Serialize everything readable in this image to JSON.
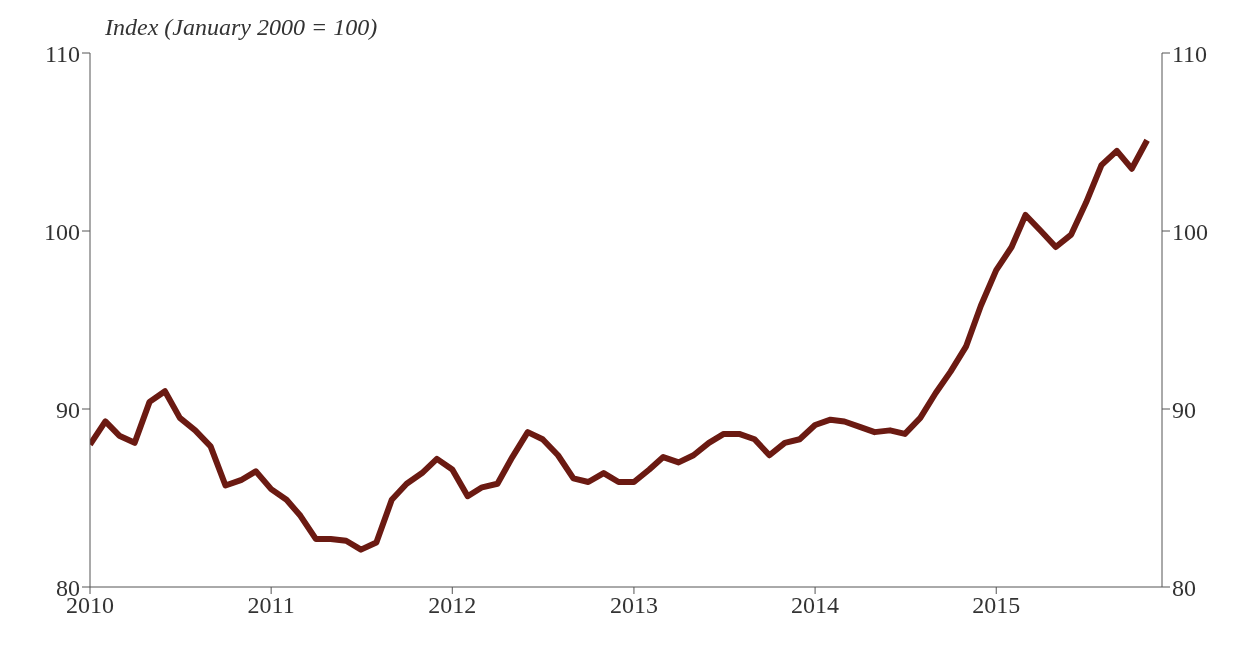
{
  "chart_data": {
    "type": "line",
    "ylabel": "Index (January 2000 = 100)",
    "x": [
      "2010-01",
      "2010-02",
      "2010-03",
      "2010-04",
      "2010-05",
      "2010-06",
      "2010-07",
      "2010-08",
      "2010-09",
      "2010-10",
      "2010-11",
      "2010-12",
      "2011-01",
      "2011-02",
      "2011-03",
      "2011-04",
      "2011-05",
      "2011-06",
      "2011-07",
      "2011-08",
      "2011-09",
      "2011-10",
      "2011-11",
      "2011-12",
      "2012-01",
      "2012-02",
      "2012-03",
      "2012-04",
      "2012-05",
      "2012-06",
      "2012-07",
      "2012-08",
      "2012-09",
      "2012-10",
      "2012-11",
      "2012-12",
      "2013-01",
      "2013-02",
      "2013-03",
      "2013-04",
      "2013-05",
      "2013-06",
      "2013-07",
      "2013-08",
      "2013-09",
      "2013-10",
      "2013-11",
      "2013-12",
      "2014-01",
      "2014-02",
      "2014-03",
      "2014-04",
      "2014-05",
      "2014-06",
      "2014-07",
      "2014-08",
      "2014-09",
      "2014-10",
      "2014-11",
      "2014-12",
      "2015-01",
      "2015-02",
      "2015-03",
      "2015-04",
      "2015-05",
      "2015-06",
      "2015-07",
      "2015-08",
      "2015-09",
      "2015-10",
      "2015-11"
    ],
    "series": [
      {
        "color": "#6b1a12",
        "values": [
          88.0,
          89.3,
          88.5,
          88.1,
          90.4,
          91.0,
          89.5,
          88.8,
          87.9,
          85.7,
          86.0,
          86.5,
          85.5,
          84.9,
          84.0,
          82.7,
          82.7,
          82.6,
          82.1,
          82.5,
          84.9,
          85.8,
          86.4,
          87.2,
          86.6,
          85.1,
          85.6,
          85.8,
          87.3,
          88.7,
          88.3,
          87.4,
          86.1,
          85.9,
          86.4,
          85.9,
          85.9,
          86.6,
          87.3,
          87.0,
          87.4,
          88.1,
          88.6,
          88.6,
          88.3,
          87.4,
          88.1,
          88.3,
          89.1,
          89.4,
          89.3,
          89.0,
          88.7,
          88.8,
          88.6,
          89.5,
          90.9,
          92.1,
          93.5,
          95.8,
          97.8,
          99.1,
          100.9,
          100.0,
          99.1,
          99.8,
          101.6,
          103.7,
          104.5,
          103.5,
          105.1
        ]
      }
    ],
    "xlim": [
      "2010-01",
      "2015-12"
    ],
    "xticks": [
      {
        "value": "2010",
        "label": "2010"
      },
      {
        "value": "2011",
        "label": "2011"
      },
      {
        "value": "2012",
        "label": "2012"
      },
      {
        "value": "2013",
        "label": "2013"
      },
      {
        "value": "2014",
        "label": "2014"
      },
      {
        "value": "2015",
        "label": "2015"
      }
    ],
    "ylim": [
      80,
      110
    ],
    "yticks": [
      80,
      90,
      100,
      110
    ],
    "y2lim": [
      80,
      110
    ],
    "y2ticks": [
      80,
      90,
      100,
      110
    ],
    "marker": "none",
    "line_style": "solid"
  }
}
